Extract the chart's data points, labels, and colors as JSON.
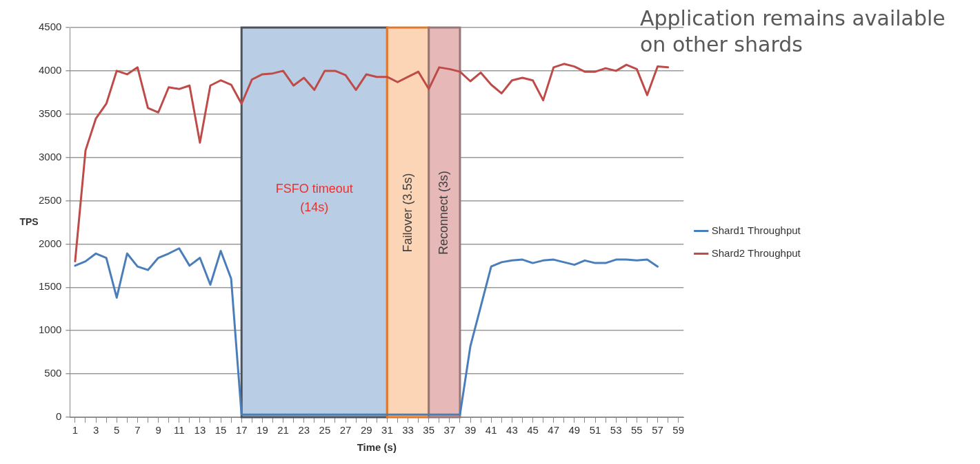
{
  "chart_data": {
    "type": "line",
    "xlabel": "Time (s)",
    "ylabel": "TPS",
    "x": [
      1,
      2,
      3,
      4,
      5,
      6,
      7,
      8,
      9,
      10,
      11,
      12,
      13,
      14,
      15,
      16,
      17,
      18,
      19,
      20,
      21,
      22,
      23,
      24,
      25,
      26,
      27,
      28,
      29,
      30,
      31,
      32,
      33,
      34,
      35,
      36,
      37,
      38,
      39,
      40,
      41,
      42,
      43,
      44,
      45,
      46,
      47,
      48,
      49,
      50,
      51,
      52,
      53,
      54,
      55,
      56,
      57,
      58
    ],
    "xlim": [
      0.5,
      59.5
    ],
    "xticks": [
      1,
      {
        "value": 2,
        "label": null
      },
      3,
      {
        "value": 4,
        "label": null
      },
      5,
      {
        "value": 6,
        "label": null
      },
      7,
      {
        "value": 8,
        "label": null
      },
      9,
      {
        "value": 10,
        "label": null
      },
      11,
      {
        "value": 12,
        "label": null
      },
      13,
      {
        "value": 14,
        "label": null
      },
      15,
      {
        "value": 16,
        "label": null
      },
      17,
      {
        "value": 18,
        "label": null
      },
      19,
      {
        "value": 20,
        "label": null
      },
      21,
      {
        "value": 22,
        "label": null
      },
      23,
      {
        "value": 24,
        "label": null
      },
      25,
      {
        "value": 26,
        "label": null
      },
      27,
      {
        "value": 28,
        "label": null
      },
      29,
      {
        "value": 30,
        "label": null
      },
      31,
      {
        "value": 32,
        "label": null
      },
      33,
      {
        "value": 34,
        "label": null
      },
      35,
      {
        "value": 36,
        "label": null
      },
      37,
      {
        "value": 38,
        "label": null
      },
      39,
      {
        "value": 40,
        "label": null
      },
      41,
      {
        "value": 42,
        "label": null
      },
      43,
      {
        "value": 44,
        "label": null
      },
      45,
      {
        "value": 46,
        "label": null
      },
      47,
      {
        "value": 48,
        "label": null
      },
      49,
      {
        "value": 50,
        "label": null
      },
      51,
      {
        "value": 52,
        "label": null
      },
      53,
      {
        "value": 54,
        "label": null
      },
      55,
      {
        "value": 56,
        "label": null
      },
      57,
      {
        "value": 58,
        "label": null
      },
      59
    ],
    "ylim": [
      0,
      4500
    ],
    "yticks": [
      0,
      500,
      1000,
      1500,
      2000,
      2500,
      3000,
      3500,
      4000,
      4500
    ],
    "grid": "y",
    "legend": "right",
    "marker": "none",
    "line_style": "solid",
    "series": [
      {
        "name": "Shard1 Throughput",
        "color": "#4a7ebb",
        "values": [
          1750,
          1800,
          1890,
          1840,
          1380,
          1890,
          1740,
          1700,
          1840,
          1890,
          1950,
          1750,
          1840,
          1530,
          1920,
          1600,
          30,
          30,
          30,
          30,
          30,
          30,
          30,
          30,
          30,
          30,
          30,
          30,
          30,
          30,
          30,
          30,
          30,
          30,
          30,
          30,
          30,
          30,
          820,
          1280,
          1740,
          1790,
          1810,
          1820,
          1780,
          1810,
          1820,
          1790,
          1760,
          1810,
          1780,
          1780,
          1820,
          1820,
          1810,
          1820,
          1740,
          null
        ]
      },
      {
        "name": "Shard2 Throughput",
        "color": "#be4b48",
        "values": [
          1800,
          3080,
          3450,
          3620,
          4000,
          3960,
          4040,
          3570,
          3520,
          3810,
          3790,
          3830,
          3170,
          3830,
          3890,
          3840,
          3620,
          3900,
          3960,
          3970,
          4000,
          3830,
          3920,
          3780,
          4000,
          4000,
          3950,
          3780,
          3960,
          3930,
          3930,
          3870,
          3930,
          3990,
          3790,
          4040,
          4020,
          3990,
          3880,
          3980,
          3840,
          3740,
          3890,
          3920,
          3890,
          3660,
          4040,
          4080,
          4050,
          3990,
          3990,
          4030,
          4000,
          4070,
          4020,
          3720,
          4050,
          4040
        ]
      }
    ],
    "bands": [
      {
        "axis": "x",
        "from": 17,
        "to": 31,
        "label": "FSFO timeout (14s)",
        "color": "#b9cde5"
      },
      {
        "axis": "x",
        "from": 31,
        "to": 35,
        "label": "Failover (3.5s)",
        "color": "#fbd5b5"
      },
      {
        "axis": "x",
        "from": 35,
        "to": 38,
        "label": "Reconnect (3s)",
        "color": "#e6b9b8"
      }
    ],
    "annotations": [
      "Application remains available on other shards"
    ]
  }
}
